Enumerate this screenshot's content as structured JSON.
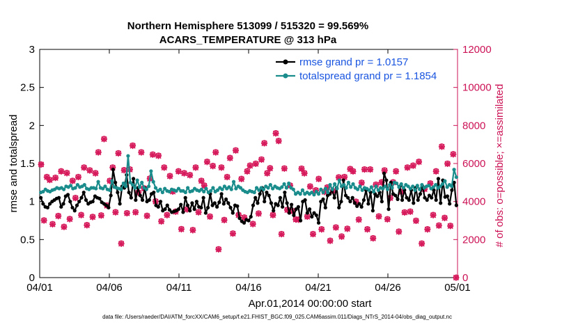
{
  "chart_data": {
    "type": "line",
    "title": "Northern Hemisphere 513099 / 515320 = 99.569%",
    "subtitle": "ACARS_TEMPERATURE @ 313 hPa",
    "xlabel": "Apr.01,2014 00:00:00 start",
    "ylabel": "rmse and totalspread",
    "y2label": "# of obs: o=possible; ×=assimilated",
    "footnote": "data file: /Users/raeder/DAI/ATM_forcXX/CAM6_setup/f.e21.FHIST_BGC.f09_025.CAM6assim.011/Diags_NTrS_2014-04/obs_diag_output.nc",
    "xlim": [
      0,
      30
    ],
    "ylim": [
      0,
      3
    ],
    "y2lim": [
      0,
      12000
    ],
    "x_ticks": [
      0,
      5,
      10,
      15,
      20,
      25,
      30
    ],
    "x_tick_labels": [
      "04/01",
      "04/06",
      "04/11",
      "04/16",
      "04/21",
      "04/26",
      "05/01"
    ],
    "y_ticks": [
      0,
      0.5,
      1,
      1.5,
      2,
      2.5,
      3
    ],
    "y_tick_labels": [
      "0",
      "0.5",
      "1",
      "1.5",
      "2",
      "2.5",
      "3"
    ],
    "y2_ticks": [
      0,
      2000,
      4000,
      6000,
      8000,
      10000,
      12000
    ],
    "y2_tick_labels": [
      "0",
      "2000",
      "4000",
      "6000",
      "8000",
      "10000",
      "12000"
    ],
    "legend_position": "top-right",
    "series": [
      {
        "name": "rmse grand pr = 1.0157",
        "color": "#000000",
        "axis": "left",
        "values": [
          1.05,
          0.97,
          0.93,
          0.92,
          0.97,
          1.0,
          1.02,
          1.04,
          1.05,
          0.93,
          0.97,
          1.07,
          1.09,
          1.0,
          0.92,
          0.88,
          0.95,
          1.0,
          1.05,
          1.12,
          1.02,
          0.97,
          0.99,
          1.0,
          1.07,
          1.05,
          1.04,
          0.99,
          0.97,
          0.95,
          0.92,
          1.08,
          1.42,
          1.25,
          1.12,
          0.97,
          1.2,
          1.18,
          1.35,
          1.12,
          1.05,
          1.3,
          1.02,
          1.18,
          1.08,
          1.02,
          1.18,
          1.0,
          1.02,
          1.1,
          1.12,
          0.95,
          0.93,
          1.0,
          0.88,
          0.9,
          0.95,
          0.89,
          0.86,
          0.87,
          0.88,
          0.9,
          0.96,
          0.86,
          1.05,
          0.95,
          0.88,
          0.98,
          0.9,
          1.0,
          0.93,
          0.92,
          1.05,
          0.85,
          0.92,
          1.1,
          0.95,
          0.98,
          0.93,
          0.99,
          1.1,
          0.97,
          1.03,
          0.98,
          0.92,
          0.85,
          0.95,
          0.94,
          0.78,
          0.74,
          0.72,
          0.76,
          0.75,
          0.8,
          0.95,
          1.05,
          0.98,
          1.1,
          1.18,
          1.0,
          1.12,
          1.08,
          0.98,
          0.88,
          0.97,
          0.95,
          1.05,
          0.93,
          1.12,
          0.98,
          0.85,
          0.96,
          0.82,
          0.9,
          0.93,
          0.75,
          1.0,
          1.02,
          0.85,
          0.9,
          0.8,
          0.85,
          0.82,
          0.72,
          1.0,
          1.03,
          0.92,
          1.08,
          1.1,
          1.15,
          1.05,
          1.18,
          0.92,
          1.0,
          1.28,
          1.08,
          1.05,
          1.0,
          1.05,
          0.98,
          0.94,
          0.97,
          0.93,
          1.02,
          1.15,
          0.97,
          1.12,
          0.88,
          1.1,
          1.07,
          1.12,
          1.0,
          1.37,
          1.28,
          0.9,
          1.25,
          1.1,
          1.08,
          1.03,
          1.2,
          1.02,
          1.15,
          1.05,
          1.02,
          1.15,
          0.98,
          1.18,
          1.02,
          1.1,
          1.2,
          1.05,
          1.02,
          1.08,
          1.05,
          1.15,
          1.02,
          1.3,
          0.98,
          1.28,
          1.06,
          1.07,
          0.97,
          1.15,
          1.25,
          0.95
        ]
      },
      {
        "name": "totalspread grand pr = 1.1854",
        "color": "#1a8c8c",
        "axis": "left",
        "values": [
          1.12,
          1.13,
          1.16,
          1.14,
          1.13,
          1.15,
          1.16,
          1.18,
          1.17,
          1.18,
          1.16,
          1.2,
          1.19,
          1.21,
          1.17,
          1.18,
          1.22,
          1.19,
          1.2,
          1.22,
          1.17,
          1.16,
          1.18,
          1.18,
          1.17,
          1.26,
          1.18,
          1.17,
          1.2,
          1.16,
          1.15,
          1.27,
          1.19,
          1.18,
          1.17,
          1.16,
          1.24,
          1.2,
          1.6,
          1.25,
          1.22,
          1.18,
          1.28,
          1.19,
          1.25,
          1.18,
          1.16,
          1.2,
          1.4,
          1.26,
          1.18,
          1.14,
          1.16,
          1.12,
          1.17,
          1.14,
          1.13,
          1.16,
          1.15,
          1.14,
          1.17,
          1.14,
          1.14,
          1.12,
          1.18,
          1.13,
          1.14,
          1.17,
          1.15,
          1.14,
          1.16,
          1.13,
          1.17,
          1.12,
          1.14,
          1.18,
          1.13,
          1.15,
          1.18,
          1.16,
          1.2,
          1.17,
          1.19,
          1.16,
          1.26,
          1.17,
          1.2,
          1.18,
          1.15,
          1.13,
          1.12,
          1.14,
          1.13,
          1.12,
          1.18,
          1.15,
          1.18,
          1.16,
          1.2,
          1.18,
          1.22,
          1.17,
          1.2,
          1.18,
          1.17,
          1.19,
          1.23,
          1.18,
          1.24,
          1.18,
          1.16,
          1.1,
          1.12,
          1.1,
          1.15,
          1.1,
          1.12,
          1.1,
          1.12,
          1.09,
          1.13,
          1.1,
          1.16,
          1.12,
          1.17,
          1.12,
          1.22,
          1.16,
          1.23,
          1.17,
          1.28,
          1.2,
          1.22,
          1.18,
          1.25,
          1.19,
          1.23,
          1.18,
          1.16,
          1.2,
          1.15,
          1.18,
          1.17,
          1.15,
          1.19,
          1.13,
          1.2,
          1.15,
          1.18,
          1.17,
          1.2,
          1.16,
          1.22,
          1.18,
          1.25,
          1.24,
          1.19,
          1.23,
          1.18,
          1.22,
          1.2,
          1.17,
          1.2,
          1.15,
          1.21,
          1.16,
          1.22,
          1.18,
          1.2,
          1.21,
          1.17,
          1.19,
          1.22,
          1.18,
          1.2,
          1.23,
          1.27,
          1.19,
          1.22,
          1.2,
          1.42,
          1.32
        ]
      },
      {
        "name": "obs possible",
        "color": "#d6195a",
        "axis": "right",
        "marker": "o",
        "values": [
          5950,
          3020,
          5300,
          5150,
          2820,
          5260,
          3250,
          5600,
          2680,
          5510,
          3090,
          5100,
          4200,
          5300,
          3300,
          5800,
          2770,
          5650,
          3200,
          5500,
          6600,
          3280,
          7300,
          3800,
          5100,
          5800,
          3450,
          6550,
          1800,
          5660,
          3400,
          5700,
          6950,
          3450,
          4480,
          6600,
          4700,
          3260,
          5220,
          6480,
          4020,
          6420,
          2970,
          5800,
          3300,
          5350,
          4540,
          3480,
          5600,
          2560,
          5500,
          3600,
          5400,
          2510,
          5800,
          3450,
          5100,
          4850,
          6100,
          3220,
          5880,
          6600,
          1500,
          5800,
          3040,
          5300,
          6300,
          2330,
          6700,
          3300,
          5200,
          3170,
          5600,
          5900,
          2830,
          6000,
          3380,
          6220,
          7080,
          5500,
          5760,
          3300,
          7600,
          7200,
          2300,
          5750,
          3570,
          4850,
          3500,
          3070,
          3060,
          5740,
          5500,
          3220,
          4800,
          2300,
          4600,
          5200,
          2550,
          4520,
          4750,
          1950,
          4560,
          2650,
          5280,
          2170,
          5300,
          2580,
          5720,
          5600,
          4000,
          3060,
          5000,
          5700,
          2550,
          5700,
          2080,
          4900,
          3230,
          5020,
          5650,
          3080,
          4200,
          5020,
          5600,
          2430,
          4520,
          3440,
          5800,
          3480,
          5900,
          3000,
          6100,
          1800,
          4670,
          2550,
          4960,
          3300,
          5600,
          2750,
          6900,
          3150,
          6000,
          2730,
          6500,
          0
        ]
      },
      {
        "name": "obs assimilated",
        "color": "#d6195a",
        "axis": "right",
        "marker": "x",
        "values": [
          5950,
          3000,
          5280,
          5130,
          2800,
          5240,
          3230,
          5580,
          2660,
          5490,
          3070,
          5080,
          4180,
          5280,
          3280,
          5780,
          2750,
          5630,
          3180,
          5480,
          6580,
          3260,
          7280,
          3780,
          5080,
          5780,
          3430,
          6530,
          1780,
          5640,
          3380,
          5680,
          6930,
          3430,
          4460,
          6580,
          4680,
          3240,
          5200,
          6460,
          4000,
          6400,
          2950,
          5780,
          3280,
          5330,
          4520,
          3460,
          5580,
          2540,
          5480,
          3580,
          5380,
          2490,
          5780,
          3430,
          5080,
          4830,
          6080,
          3200,
          5860,
          6580,
          1480,
          5780,
          3020,
          5280,
          6280,
          2310,
          6680,
          3280,
          5180,
          3150,
          5580,
          5880,
          2810,
          5980,
          3360,
          6200,
          7060,
          5480,
          5740,
          3280,
          7580,
          7180,
          2280,
          5730,
          3550,
          4830,
          3480,
          3050,
          3040,
          5720,
          5480,
          3200,
          4780,
          2280,
          4580,
          5180,
          2530,
          4500,
          4730,
          1930,
          4540,
          2630,
          5260,
          2150,
          5280,
          2560,
          5700,
          5580,
          3980,
          3040,
          4980,
          5680,
          2530,
          5680,
          2060,
          4880,
          3210,
          5000,
          5630,
          3060,
          4180,
          5000,
          5580,
          2410,
          4500,
          3420,
          5780,
          3460,
          5880,
          2980,
          6080,
          1780,
          4650,
          2530,
          4940,
          3280,
          5580,
          2730,
          6880,
          3130,
          5980,
          2710,
          6480,
          0
        ]
      }
    ]
  }
}
